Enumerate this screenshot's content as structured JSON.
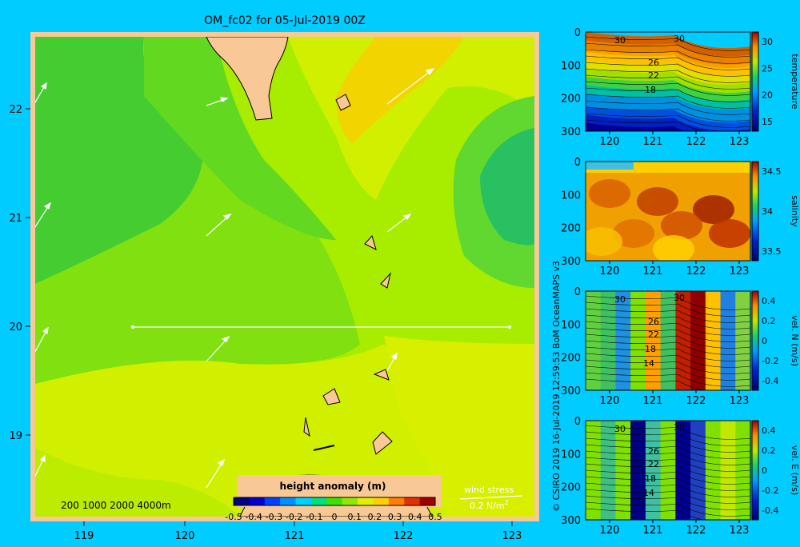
{
  "title": "OM_fc02 for 05-Jul-2019 00Z",
  "credit": "© CSIRO 2019  16-Jul-2019 12:59:53 BoM OceanMAPS v3",
  "colors": {
    "background": "#00ccff",
    "land": "#f8c896",
    "map_frame": "#f8c896"
  },
  "map": {
    "lon_range": [
      118.5,
      123.5
    ],
    "lat_range": [
      18.3,
      22.7
    ],
    "x_ticks": [
      "119",
      "120",
      "121",
      "122",
      "123"
    ],
    "y_ticks": [
      "19",
      "20",
      "21",
      "22"
    ],
    "depth_contours": "200  1000  2000  4000m",
    "section_line": {
      "lon": [
        119.5,
        123.2
      ],
      "lat": 20.0
    },
    "wind_stress_label": "wind stress",
    "wind_stress_scale": "0.2 N/m",
    "wind_stress_unit_exp": "2"
  },
  "colorbar": {
    "title": "height anomaly  (m)",
    "ticks": [
      "-0.5",
      "-0.4",
      "-0.3",
      "-0.2",
      "-0.1",
      "0",
      "0.1",
      "0.2",
      "0.3",
      "0.4",
      "0.5"
    ],
    "colors": [
      "#000080",
      "#0000cc",
      "#0040ff",
      "#0090ff",
      "#00d0ff",
      "#00e080",
      "#40e000",
      "#90e800",
      "#e0f000",
      "#ffd000",
      "#ff8000",
      "#e03000",
      "#a00000"
    ]
  },
  "chart_data": [
    {
      "type": "heatmap",
      "title": "height anomaly (m)",
      "x_range": [
        118.5,
        123.5
      ],
      "y_range": [
        18.3,
        22.7
      ],
      "value_range": [
        -0.5,
        0.5
      ],
      "note_values": {
        "west": 0.05,
        "central": 0.15,
        "northeast_max": 0.28,
        "east_min": -0.02
      }
    },
    {
      "type": "heatmap",
      "label": "temperature",
      "x_ticks": [
        "120",
        "121",
        "122",
        "123"
      ],
      "y_ticks": [
        "0",
        "100",
        "200",
        "300"
      ],
      "cb_ticks": [
        "30",
        "25",
        "20",
        "15"
      ],
      "contour_labels": [
        "30",
        "30",
        "26",
        "22",
        "18"
      ],
      "ylim": [
        300,
        0
      ]
    },
    {
      "type": "heatmap",
      "label": "salinity",
      "x_ticks": [
        "120",
        "121",
        "122",
        "123"
      ],
      "y_ticks": [
        "0",
        "100",
        "200",
        "300"
      ],
      "cb_ticks": [
        "34.5",
        "34",
        "33.5"
      ],
      "contour_labels": [],
      "ylim": [
        300,
        0
      ]
    },
    {
      "type": "heatmap",
      "label": "vel. N (m/s)",
      "x_ticks": [
        "120",
        "121",
        "122",
        "123"
      ],
      "y_ticks": [
        "0",
        "100",
        "200",
        "300"
      ],
      "cb_ticks": [
        "0.4",
        "0.2",
        "0",
        "-0.2",
        "-0.4"
      ],
      "contour_labels": [
        "30",
        "30",
        "26",
        "22",
        "18",
        "14"
      ],
      "ylim": [
        300,
        0
      ]
    },
    {
      "type": "heatmap",
      "label": "vel. E (m/s)",
      "x_ticks": [
        "120",
        "121",
        "122",
        "123"
      ],
      "y_ticks": [
        "0",
        "100",
        "200",
        "300"
      ],
      "cb_ticks": [
        "0.4",
        "0.2",
        "0",
        "-0.2",
        "-0.4"
      ],
      "contour_labels": [
        "30",
        "30",
        "26",
        "22",
        "18",
        "14"
      ],
      "ylim": [
        300,
        0
      ]
    }
  ]
}
